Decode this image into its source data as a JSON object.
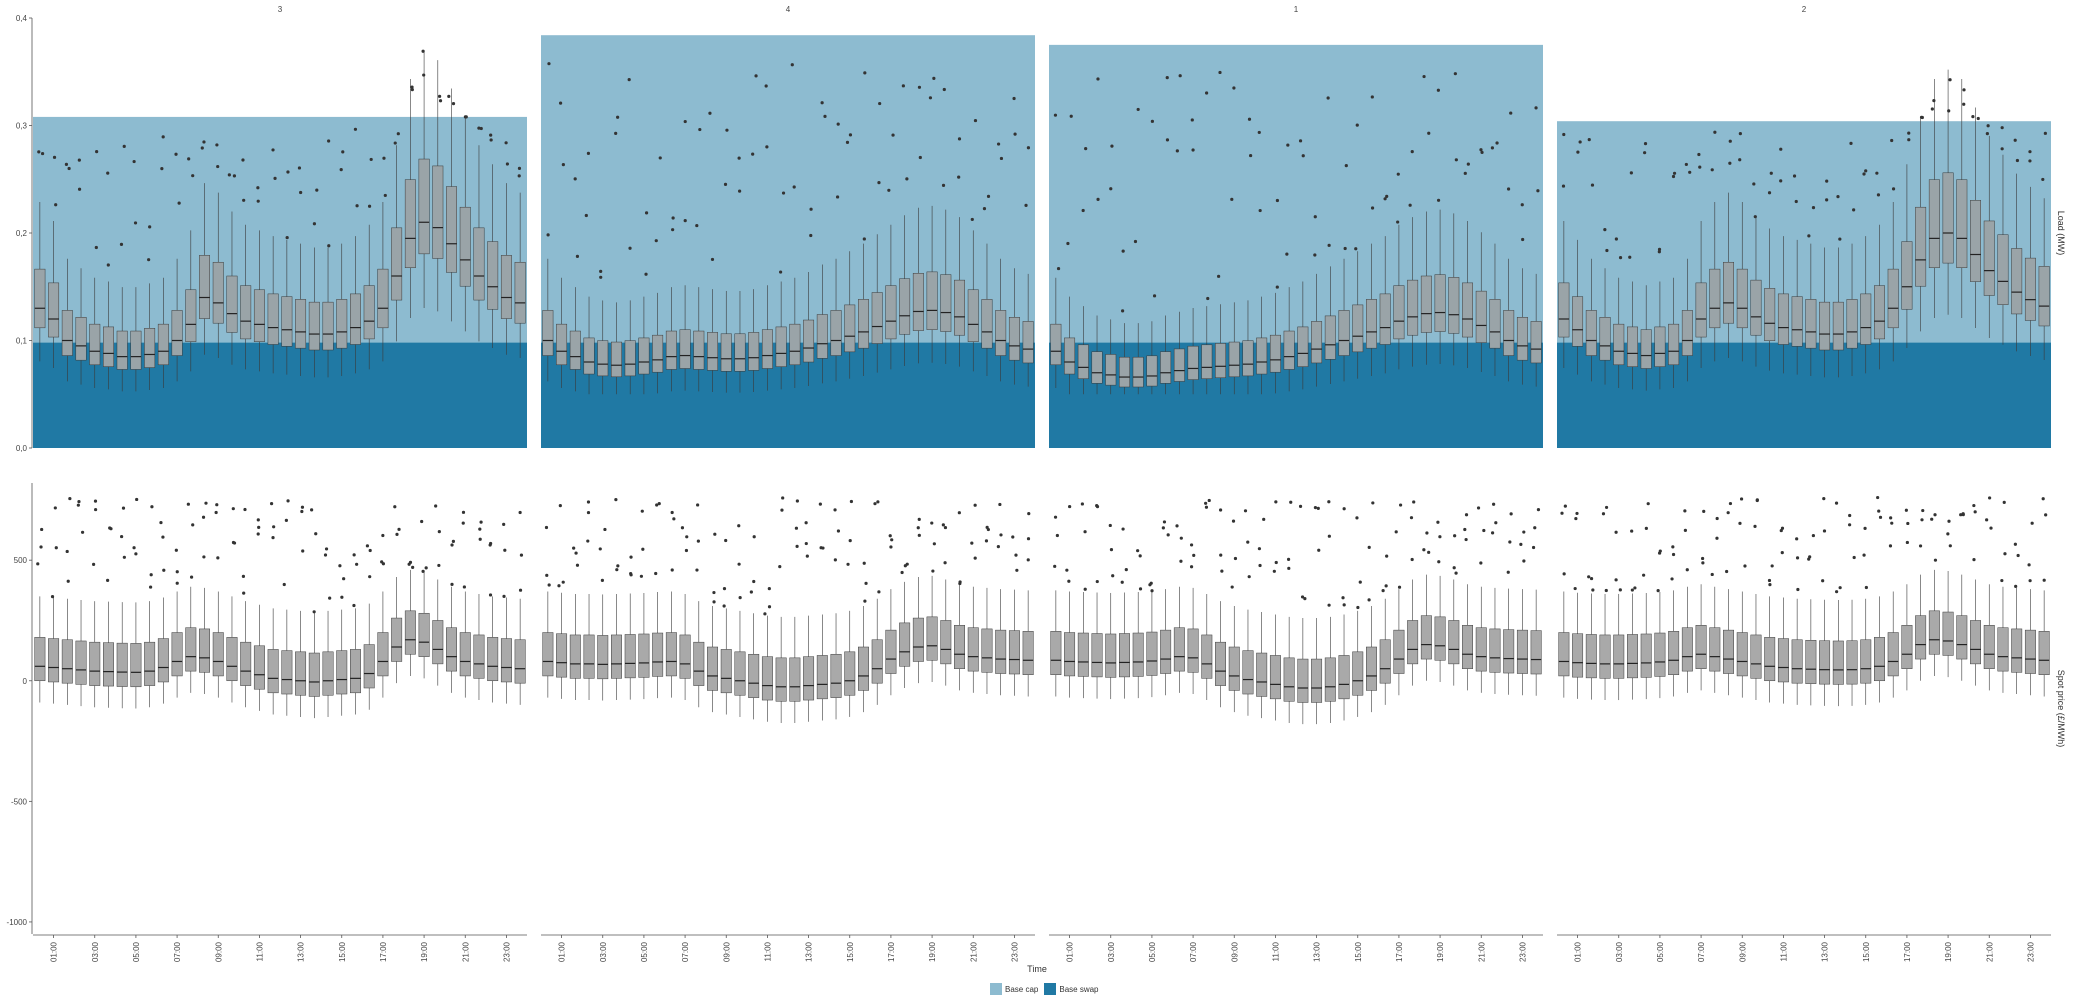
{
  "colors": {
    "base_cap": "#8dbbd0",
    "base_swap": "#2079a4",
    "box_fill": "#a9a9a9",
    "box_line": "#3a3a3a",
    "point": "#333333"
  },
  "chart_data": {
    "type": "boxplot-faceted",
    "xlabel": "Time",
    "x_ticks": [
      "01:00",
      "03:00",
      "05:00",
      "07:00",
      "09:00",
      "11:00",
      "13:00",
      "15:00",
      "17:00",
      "19:00",
      "21:00",
      "23:00"
    ],
    "facets": [
      "3",
      "4",
      "1",
      "2"
    ],
    "rows": [
      {
        "ylabel": "Load (MW)",
        "ylim": [
          0,
          0.4
        ],
        "y_ticks": [
          "0,0",
          "0,1",
          "0,2",
          "0,3",
          "0,4"
        ],
        "y_tick_values": [
          0,
          0.1,
          0.2,
          0.3,
          0.4
        ],
        "base_cap": {
          "3": 0.308,
          "4": 0.384,
          "1": 0.375,
          "2": 0.304
        },
        "medians": {
          "3": [
            0.13,
            0.12,
            0.1,
            0.095,
            0.09,
            0.088,
            0.085,
            0.085,
            0.087,
            0.09,
            0.1,
            0.115,
            0.14,
            0.135,
            0.125,
            0.118,
            0.115,
            0.112,
            0.11,
            0.108,
            0.106,
            0.106,
            0.108,
            0.112,
            0.118,
            0.13,
            0.16,
            0.195,
            0.21,
            0.205,
            0.19,
            0.175,
            0.16,
            0.15,
            0.14,
            0.135
          ],
          "4": [
            0.1,
            0.09,
            0.085,
            0.08,
            0.078,
            0.077,
            0.078,
            0.08,
            0.082,
            0.085,
            0.086,
            0.085,
            0.084,
            0.083,
            0.083,
            0.084,
            0.086,
            0.088,
            0.09,
            0.093,
            0.097,
            0.1,
            0.104,
            0.108,
            0.113,
            0.118,
            0.123,
            0.127,
            0.128,
            0.126,
            0.122,
            0.115,
            0.108,
            0.1,
            0.095,
            0.092
          ],
          "1": [
            0.09,
            0.08,
            0.075,
            0.07,
            0.068,
            0.066,
            0.066,
            0.067,
            0.07,
            0.072,
            0.074,
            0.075,
            0.076,
            0.077,
            0.078,
            0.08,
            0.082,
            0.085,
            0.088,
            0.092,
            0.096,
            0.1,
            0.104,
            0.108,
            0.112,
            0.118,
            0.122,
            0.125,
            0.126,
            0.124,
            0.12,
            0.114,
            0.108,
            0.1,
            0.095,
            0.092
          ],
          "2": [
            0.12,
            0.11,
            0.1,
            0.095,
            0.09,
            0.088,
            0.086,
            0.088,
            0.09,
            0.1,
            0.12,
            0.13,
            0.135,
            0.13,
            0.122,
            0.116,
            0.112,
            0.11,
            0.108,
            0.106,
            0.106,
            0.108,
            0.112,
            0.118,
            0.13,
            0.15,
            0.175,
            0.195,
            0.2,
            0.195,
            0.18,
            0.165,
            0.155,
            0.145,
            0.138,
            0.132
          ]
        }
      },
      {
        "ylabel": "Spot price (£/MWh)",
        "ylim": [
          -1050,
          820
        ],
        "y_ticks": [
          "-1000",
          "-500",
          "0",
          "500"
        ],
        "y_tick_values": [
          -1000,
          -500,
          0,
          500
        ],
        "medians": {
          "3": [
            60,
            55,
            50,
            45,
            40,
            38,
            36,
            35,
            40,
            55,
            80,
            100,
            95,
            80,
            60,
            40,
            25,
            10,
            5,
            0,
            -5,
            0,
            5,
            10,
            30,
            80,
            140,
            170,
            160,
            130,
            100,
            80,
            70,
            60,
            55,
            50
          ],
          "4": [
            80,
            75,
            70,
            70,
            68,
            70,
            72,
            74,
            78,
            80,
            70,
            40,
            20,
            10,
            0,
            -10,
            -20,
            -25,
            -25,
            -20,
            -15,
            -10,
            0,
            20,
            50,
            90,
            120,
            140,
            145,
            130,
            110,
            100,
            95,
            90,
            88,
            85
          ],
          "1": [
            85,
            80,
            78,
            76,
            74,
            76,
            78,
            82,
            90,
            100,
            95,
            70,
            40,
            20,
            5,
            -5,
            -15,
            -25,
            -30,
            -30,
            -25,
            -15,
            0,
            20,
            50,
            90,
            130,
            150,
            145,
            130,
            110,
            100,
            95,
            92,
            90,
            88
          ],
          "2": [
            80,
            75,
            72,
            70,
            70,
            72,
            74,
            78,
            85,
            100,
            110,
            100,
            90,
            80,
            70,
            60,
            55,
            50,
            48,
            46,
            45,
            46,
            50,
            60,
            80,
            110,
            150,
            170,
            165,
            150,
            130,
            110,
            100,
            95,
            90,
            85
          ]
        }
      }
    ],
    "legend": [
      "Base cap",
      "Base swap"
    ]
  }
}
